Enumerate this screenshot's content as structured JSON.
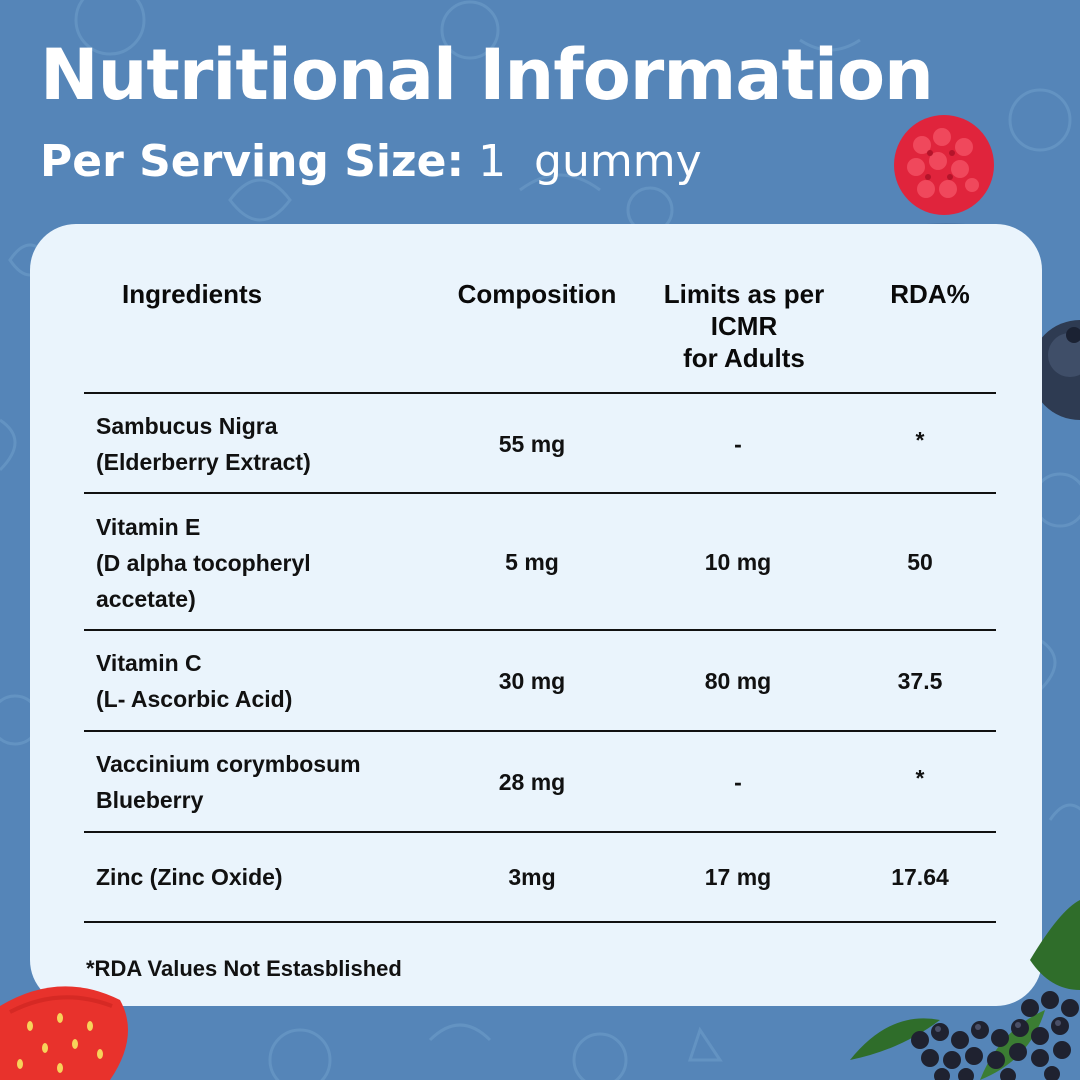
{
  "title": "Nutritional Information",
  "subtitle": {
    "label": "Per Serving Size:",
    "value": "1  gummy"
  },
  "table": {
    "headers": {
      "ingredients": "Ingredients",
      "composition": "Composition",
      "limits": [
        "Limits as per",
        "ICMR",
        "for Adults"
      ],
      "rda": "RDA%"
    },
    "rows": [
      {
        "ingredient": [
          "Sambucus Nigra",
          "(Elderberry Extract)"
        ],
        "composition": "55 mg",
        "limit": "-",
        "rda": "*"
      },
      {
        "ingredient": [
          "Vitamin E",
          "(D alpha tocopheryl",
          "accetate)"
        ],
        "composition": "5 mg",
        "limit": "10 mg",
        "rda": "50"
      },
      {
        "ingredient": [
          "Vitamin C",
          "(L- Ascorbic Acid)"
        ],
        "composition": "30 mg",
        "limit": "80 mg",
        "rda": "37.5"
      },
      {
        "ingredient": [
          "Vaccinium corymbosum",
          "Blueberry"
        ],
        "composition": "28 mg",
        "limit": "-",
        "rda": "*"
      },
      {
        "ingredient": [
          "Zinc (Zinc Oxide)"
        ],
        "composition": "3mg",
        "limit": "17 mg",
        "rda": "17.64"
      }
    ]
  },
  "footnote": "*RDA Values Not Estasblished",
  "colors": {
    "background": "#5585b8",
    "card": "#eaf4fc",
    "text": "#111111",
    "raspberry": "#e0243c",
    "blueberry": "#2e3b52",
    "strawberry": "#e8322c"
  },
  "decorations": [
    "raspberry-gummy-image",
    "blueberry-image",
    "strawberry-image",
    "elderberry-image"
  ]
}
